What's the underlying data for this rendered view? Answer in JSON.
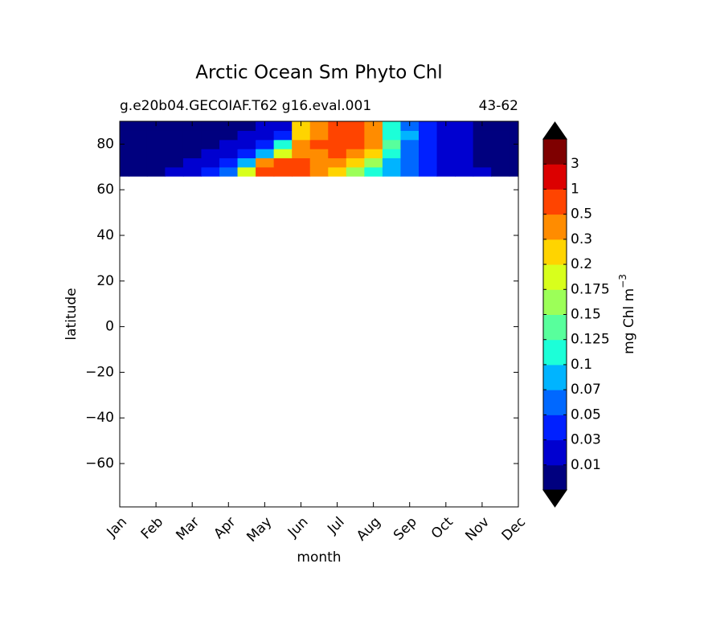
{
  "chart_data": {
    "type": "contourf",
    "title": "Arctic Ocean Sm Phyto Chl",
    "subtitle_left": "g.e20b04.GECOIAF.T62 g16.eval.001",
    "subtitle_right": "43-62",
    "x_label": "month",
    "y_label": "latitude",
    "colorbar_label": "mg Chl m",
    "colorbar_label_exponent": "−3",
    "xlim": [
      1,
      12
    ],
    "ylim": [
      -79,
      90
    ],
    "xticks": [
      {
        "value": 1,
        "label": "Jan"
      },
      {
        "value": 2,
        "label": "Feb"
      },
      {
        "value": 3,
        "label": "Mar"
      },
      {
        "value": 4,
        "label": "Apr"
      },
      {
        "value": 5,
        "label": "May"
      },
      {
        "value": 6,
        "label": "Jun"
      },
      {
        "value": 7,
        "label": "Jul"
      },
      {
        "value": 8,
        "label": "Aug"
      },
      {
        "value": 9,
        "label": "Sep"
      },
      {
        "value": 10,
        "label": "Oct"
      },
      {
        "value": 11,
        "label": "Nov"
      },
      {
        "value": 12,
        "label": "Dec"
      }
    ],
    "yticks": [
      {
        "value": -60,
        "label": "−60"
      },
      {
        "value": -40,
        "label": "−40"
      },
      {
        "value": -20,
        "label": "−20"
      },
      0,
      20,
      40,
      60,
      80
    ],
    "levels": [
      0.01,
      0.03,
      0.05,
      0.07,
      0.1,
      0.125,
      0.15,
      0.175,
      0.2,
      0.3,
      0.5,
      1,
      3
    ],
    "colors": [
      "#00007f",
      "#0000d0",
      "#0020ff",
      "#0068ff",
      "#00b4ff",
      "#1cffd8",
      "#58ff9c",
      "#9cff58",
      "#d8ff1c",
      "#ffd400",
      "#ff8c00",
      "#ff4400",
      "#dc0000",
      "#7f0000"
    ],
    "under_color": "#000000",
    "over_color": "#000000",
    "x": [
      1,
      1.5,
      2,
      2.5,
      3,
      3.5,
      4,
      4.5,
      5,
      5.5,
      6,
      6.5,
      7,
      7.5,
      8,
      8.5,
      9,
      9.5,
      10,
      10.5,
      11,
      11.5,
      12
    ],
    "y": [
      68,
      72,
      76,
      80,
      84,
      88
    ],
    "z": [
      [
        0.005,
        0.005,
        0.008,
        0.01,
        0.015,
        0.03,
        0.06,
        0.18,
        0.6,
        0.9,
        0.7,
        0.3,
        0.2,
        0.15,
        0.1,
        0.07,
        0.05,
        0.03,
        0.02,
        0.015,
        0.01,
        0.008,
        0.005
      ],
      [
        0.005,
        0.005,
        0.005,
        0.008,
        0.01,
        0.015,
        0.03,
        0.08,
        0.3,
        0.6,
        0.8,
        0.45,
        0.35,
        0.25,
        0.15,
        0.08,
        0.05,
        0.03,
        0.02,
        0.015,
        0.008,
        0.005,
        0.005
      ],
      [
        0.005,
        0.005,
        0.005,
        0.005,
        0.005,
        0.01,
        0.015,
        0.03,
        0.08,
        0.18,
        0.4,
        0.45,
        0.5,
        0.4,
        0.2,
        0.1,
        0.05,
        0.03,
        0.02,
        0.012,
        0.008,
        0.005,
        0.005
      ],
      [
        0.005,
        0.005,
        0.005,
        0.005,
        0.005,
        0.008,
        0.012,
        0.02,
        0.04,
        0.1,
        0.3,
        0.5,
        0.7,
        0.6,
        0.3,
        0.14,
        0.06,
        0.04,
        0.02,
        0.012,
        0.008,
        0.005,
        0.005
      ],
      [
        0.005,
        0.005,
        0.005,
        0.005,
        0.005,
        0.005,
        0.008,
        0.012,
        0.02,
        0.04,
        0.25,
        0.4,
        0.7,
        0.6,
        0.35,
        0.12,
        0.07,
        0.04,
        0.02,
        0.012,
        0.008,
        0.005,
        0.005
      ],
      [
        0.005,
        0.005,
        0.005,
        0.005,
        0.005,
        0.005,
        0.005,
        0.008,
        0.012,
        0.02,
        0.25,
        0.4,
        0.6,
        0.6,
        0.35,
        0.11,
        0.06,
        0.04,
        0.02,
        0.012,
        0.008,
        0.005,
        0.005
      ]
    ]
  }
}
